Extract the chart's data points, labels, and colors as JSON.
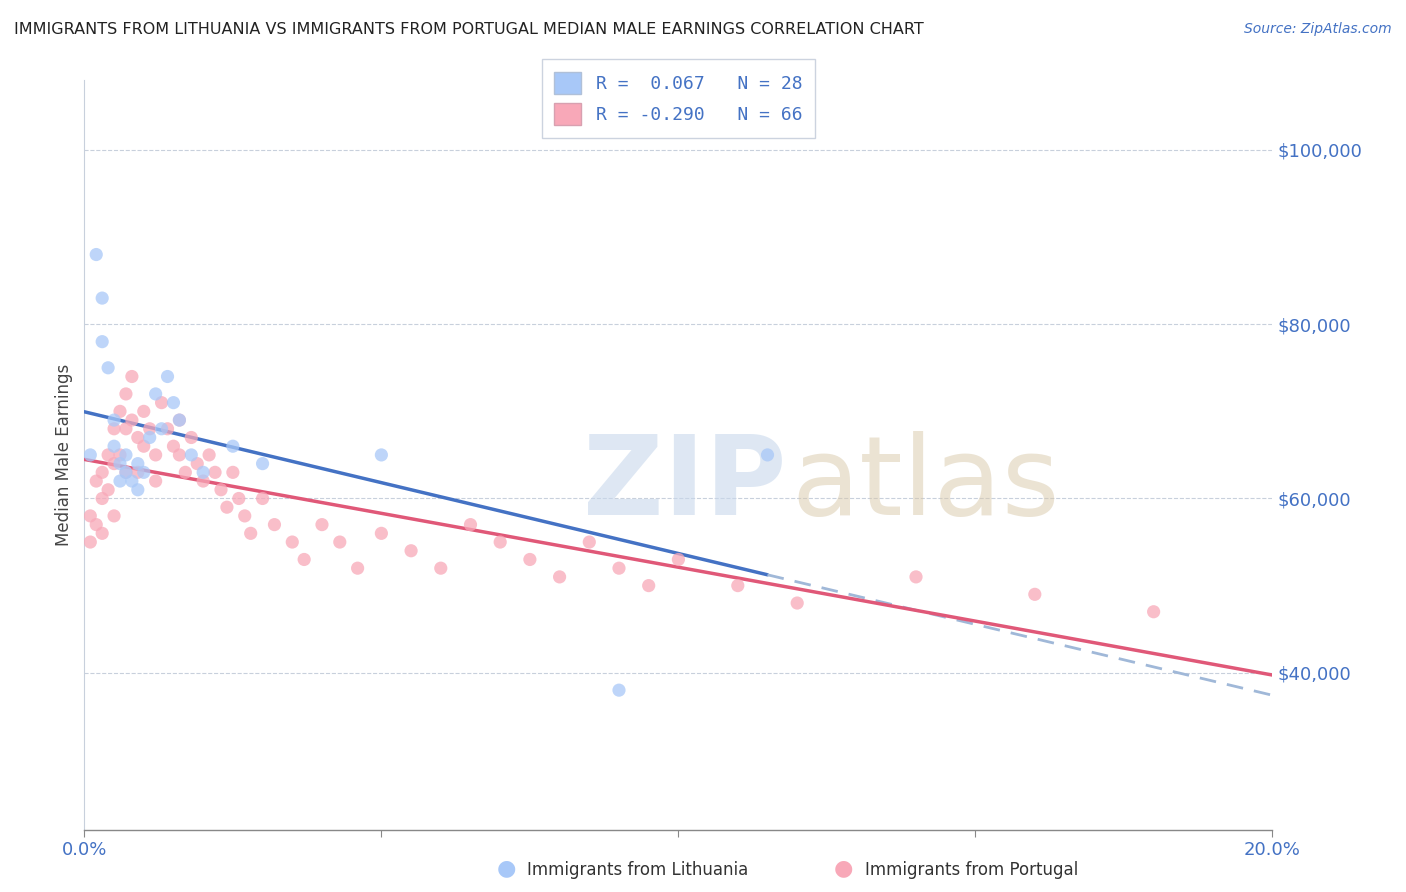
{
  "title": "IMMIGRANTS FROM LITHUANIA VS IMMIGRANTS FROM PORTUGAL MEDIAN MALE EARNINGS CORRELATION CHART",
  "source": "Source: ZipAtlas.com",
  "ylabel": "Median Male Earnings",
  "yticks": [
    40000,
    60000,
    80000,
    100000
  ],
  "ytick_labels": [
    "$40,000",
    "$60,000",
    "$80,000",
    "$100,000"
  ],
  "xmin": 0.0,
  "xmax": 0.2,
  "ymin": 22000,
  "ymax": 108000,
  "color_lithuania": "#a8c8f8",
  "color_portugal": "#f8a8b8",
  "line_color_lithuania": "#4472c4",
  "line_color_portugal": "#e05878",
  "line_color_lithuania_dash": "#a0b8d8",
  "scatter_alpha": 0.75,
  "scatter_size": 90,
  "lithuania_x": [
    0.001,
    0.002,
    0.003,
    0.003,
    0.004,
    0.005,
    0.005,
    0.006,
    0.006,
    0.007,
    0.007,
    0.008,
    0.009,
    0.009,
    0.01,
    0.011,
    0.012,
    0.013,
    0.014,
    0.015,
    0.016,
    0.018,
    0.02,
    0.025,
    0.03,
    0.05,
    0.09,
    0.115
  ],
  "lithuania_y": [
    65000,
    88000,
    83000,
    78000,
    75000,
    69000,
    66000,
    64000,
    62000,
    63000,
    65000,
    62000,
    64000,
    61000,
    63000,
    67000,
    72000,
    68000,
    74000,
    71000,
    69000,
    65000,
    63000,
    66000,
    64000,
    65000,
    38000,
    65000
  ],
  "portugal_x": [
    0.001,
    0.001,
    0.002,
    0.002,
    0.003,
    0.003,
    0.003,
    0.004,
    0.004,
    0.005,
    0.005,
    0.005,
    0.006,
    0.006,
    0.007,
    0.007,
    0.007,
    0.008,
    0.008,
    0.009,
    0.009,
    0.01,
    0.01,
    0.011,
    0.012,
    0.012,
    0.013,
    0.014,
    0.015,
    0.016,
    0.016,
    0.017,
    0.018,
    0.019,
    0.02,
    0.021,
    0.022,
    0.023,
    0.024,
    0.025,
    0.026,
    0.027,
    0.028,
    0.03,
    0.032,
    0.035,
    0.037,
    0.04,
    0.043,
    0.046,
    0.05,
    0.055,
    0.06,
    0.065,
    0.07,
    0.075,
    0.08,
    0.085,
    0.09,
    0.095,
    0.1,
    0.11,
    0.12,
    0.14,
    0.16,
    0.18
  ],
  "portugal_y": [
    58000,
    55000,
    62000,
    57000,
    63000,
    60000,
    56000,
    65000,
    61000,
    68000,
    64000,
    58000,
    70000,
    65000,
    72000,
    68000,
    63000,
    74000,
    69000,
    67000,
    63000,
    70000,
    66000,
    68000,
    65000,
    62000,
    71000,
    68000,
    66000,
    69000,
    65000,
    63000,
    67000,
    64000,
    62000,
    65000,
    63000,
    61000,
    59000,
    63000,
    60000,
    58000,
    56000,
    60000,
    57000,
    55000,
    53000,
    57000,
    55000,
    52000,
    56000,
    54000,
    52000,
    57000,
    55000,
    53000,
    51000,
    55000,
    52000,
    50000,
    53000,
    50000,
    48000,
    51000,
    49000,
    47000
  ]
}
